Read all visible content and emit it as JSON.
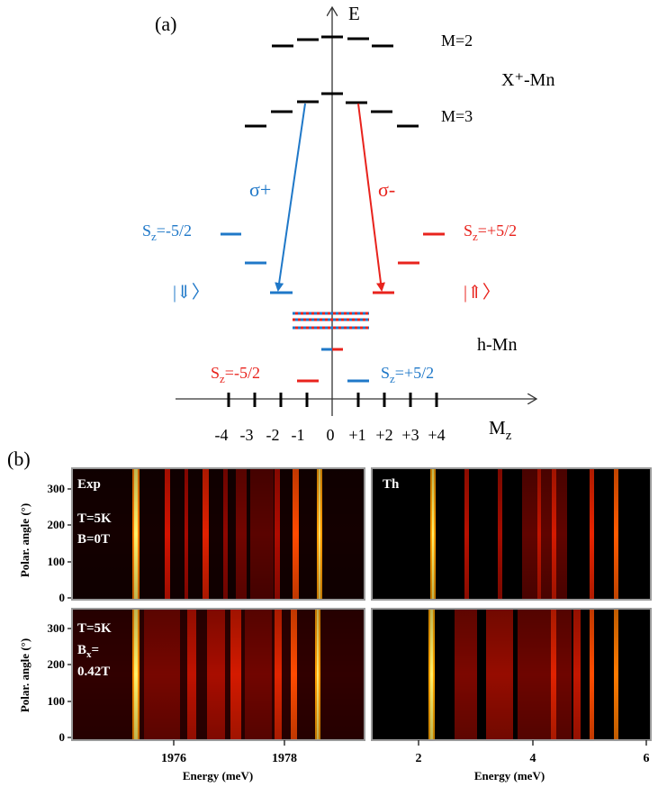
{
  "colors": {
    "black": "#000000",
    "blue": "#1f78c8",
    "red": "#e8231d",
    "panel_bg": "#000000",
    "frame": "#9a9a9a"
  },
  "panel_a": {
    "label": "(a)",
    "energy_axis_label": "E",
    "mz_axis_label": "M",
    "mz_axis_sub": "z",
    "mz_ticks": [
      "-4",
      "-3",
      "-2",
      "-1",
      "0",
      "+1",
      "+2",
      "+3",
      "+4"
    ],
    "m2_label": "M=2",
    "m3_label": "M=3",
    "xmn_label": "X⁺-Mn",
    "hmn_label": "h-Mn",
    "sigma_plus": "σ+",
    "sigma_minus": "σ-",
    "sz_left_top": {
      "main": "S",
      "sub": "z",
      "tail": "=-5/2"
    },
    "sz_right_top": {
      "main": "S",
      "sub": "z",
      "tail": "=+5/2"
    },
    "sz_left_bottom": {
      "main": "S",
      "sub": "z",
      "tail": "=-5/2"
    },
    "sz_right_bottom": {
      "main": "S",
      "sub": "z",
      "tail": "=+5/2"
    },
    "ket_down": "|⇓〉",
    "ket_up": "|⇑〉"
  },
  "panel_b": {
    "label": "(b)",
    "y_axis_label": "Polar. angle (°)",
    "y_ticks": [
      "0",
      "100",
      "200",
      "300"
    ],
    "exp_x_ticks": [
      "1976",
      "1978"
    ],
    "th_x_ticks": [
      "2",
      "4",
      "6"
    ],
    "x_axis_label": "Energy (meV)",
    "top_left": {
      "tag": "Exp",
      "line1": "T=5K",
      "line2": "B=0T"
    },
    "top_right": {
      "tag": "Th"
    },
    "bottom_left": {
      "line1": "T=5K",
      "line2_main": "B",
      "line2_sub": "x",
      "line2_tail": "=",
      "line3": "0.42T"
    }
  }
}
